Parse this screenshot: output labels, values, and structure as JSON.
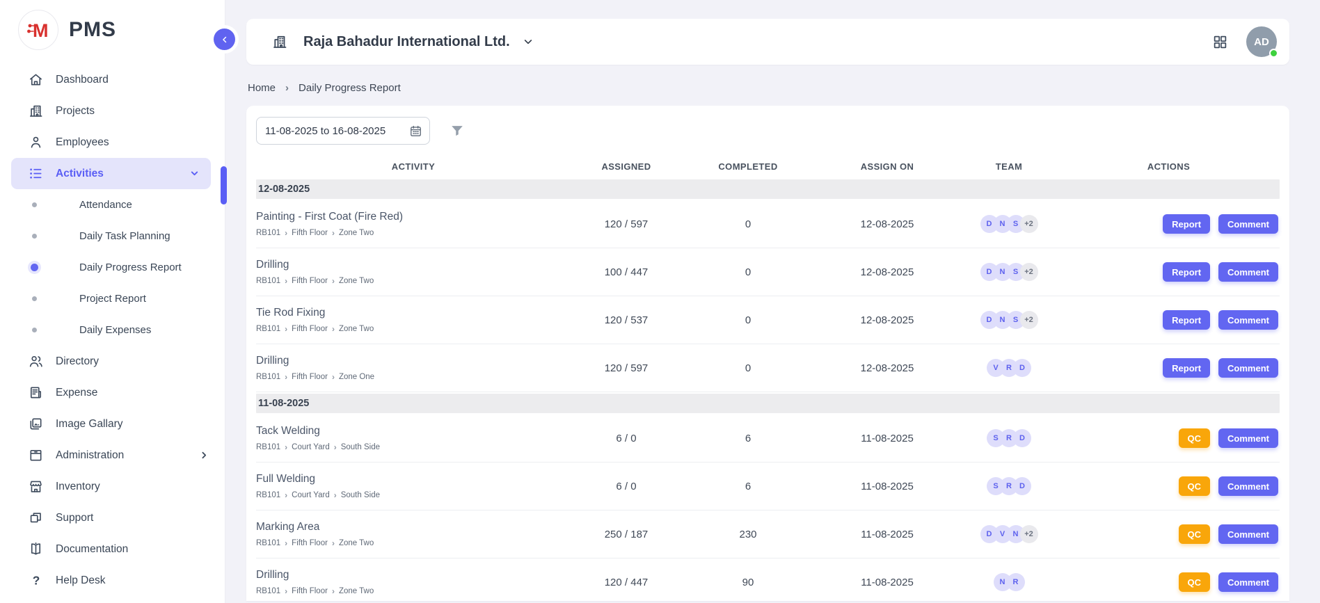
{
  "brand": {
    "name": "PMS",
    "logo_letter": "M"
  },
  "colors": {
    "accent": "#6266f1",
    "accent_light_bg": "#e4e4fb",
    "qc_orange": "#f9a60a",
    "avatar_bg": "#909dab",
    "online_green": "#3ed13e",
    "group_band": "#ececee",
    "page_bg": "#f2f2f8"
  },
  "header": {
    "company_name": "Raja Bahadur International Ltd.",
    "avatar_initials": "AD"
  },
  "breadcrumb": {
    "items": [
      "Home",
      "Daily Progress Report"
    ]
  },
  "filters": {
    "date_range_value": "11-08-2025 to 16-08-2025"
  },
  "sidebar": {
    "items": [
      {
        "label": "Dashboard",
        "icon": "home-icon"
      },
      {
        "label": "Projects",
        "icon": "building-icon"
      },
      {
        "label": "Employees",
        "icon": "person-icon"
      },
      {
        "label": "Activities",
        "icon": "list-icon",
        "active": true,
        "chevron": "down",
        "children": [
          {
            "label": "Attendance",
            "active": false
          },
          {
            "label": "Daily Task Planning",
            "active": false
          },
          {
            "label": "Daily Progress Report",
            "active": true
          },
          {
            "label": "Project Report",
            "active": false
          },
          {
            "label": "Daily Expenses",
            "active": false
          }
        ]
      },
      {
        "label": "Directory",
        "icon": "people-icon"
      },
      {
        "label": "Expense",
        "icon": "receipt-icon"
      },
      {
        "label": "Image Gallary",
        "icon": "gallery-icon"
      },
      {
        "label": "Administration",
        "icon": "archive-icon",
        "chevron": "right"
      },
      {
        "label": "Inventory",
        "icon": "store-icon"
      },
      {
        "label": "Support",
        "icon": "squares-icon"
      },
      {
        "label": "Documentation",
        "icon": "book-icon"
      },
      {
        "label": "Help Desk",
        "icon": "question-icon"
      }
    ]
  },
  "table": {
    "columns": [
      "ACTIVITY",
      "ASSIGNED",
      "COMPLETED",
      "ASSIGN ON",
      "TEAM",
      "ACTIONS"
    ],
    "groups": [
      {
        "date": "12-08-2025",
        "rows": [
          {
            "title": "Painting - First Coat (Fire Red)",
            "path": [
              "RB101",
              "Fifth Floor",
              "Zone Two"
            ],
            "assigned": "120 / 597",
            "completed": "0",
            "assign_on": "12-08-2025",
            "team": [
              "D",
              "N",
              "S"
            ],
            "team_extra": "+2",
            "actions": [
              "Report",
              "Comment"
            ]
          },
          {
            "title": "Drilling",
            "path": [
              "RB101",
              "Fifth Floor",
              "Zone Two"
            ],
            "assigned": "100 / 447",
            "completed": "0",
            "assign_on": "12-08-2025",
            "team": [
              "D",
              "N",
              "S"
            ],
            "team_extra": "+2",
            "actions": [
              "Report",
              "Comment"
            ]
          },
          {
            "title": "Tie Rod Fixing",
            "path": [
              "RB101",
              "Fifth Floor",
              "Zone Two"
            ],
            "assigned": "120 / 537",
            "completed": "0",
            "assign_on": "12-08-2025",
            "team": [
              "D",
              "N",
              "S"
            ],
            "team_extra": "+2",
            "actions": [
              "Report",
              "Comment"
            ]
          },
          {
            "title": "Drilling",
            "path": [
              "RB101",
              "Fifth Floor",
              "Zone One"
            ],
            "assigned": "120 / 597",
            "completed": "0",
            "assign_on": "12-08-2025",
            "team": [
              "V",
              "R",
              "D"
            ],
            "team_extra": null,
            "actions": [
              "Report",
              "Comment"
            ]
          }
        ]
      },
      {
        "date": "11-08-2025",
        "rows": [
          {
            "title": "Tack Welding",
            "path": [
              "RB101",
              "Court Yard",
              "South Side"
            ],
            "assigned": "6 / 0",
            "completed": "6",
            "assign_on": "11-08-2025",
            "team": [
              "S",
              "R",
              "D"
            ],
            "team_extra": null,
            "actions": [
              "QC",
              "Comment"
            ]
          },
          {
            "title": "Full Welding",
            "path": [
              "RB101",
              "Court Yard",
              "South Side"
            ],
            "assigned": "6 / 0",
            "completed": "6",
            "assign_on": "11-08-2025",
            "team": [
              "S",
              "R",
              "D"
            ],
            "team_extra": null,
            "actions": [
              "QC",
              "Comment"
            ]
          },
          {
            "title": "Marking Area",
            "path": [
              "RB101",
              "Fifth Floor",
              "Zone Two"
            ],
            "assigned": "250 / 187",
            "completed": "230",
            "assign_on": "11-08-2025",
            "team": [
              "D",
              "V",
              "N"
            ],
            "team_extra": "+2",
            "actions": [
              "QC",
              "Comment"
            ]
          },
          {
            "title": "Drilling",
            "path": [
              "RB101",
              "Fifth Floor",
              "Zone Two"
            ],
            "assigned": "120 / 447",
            "completed": "90",
            "assign_on": "11-08-2025",
            "team": [
              "N",
              "R"
            ],
            "team_extra": null,
            "actions": [
              "QC",
              "Comment"
            ]
          }
        ]
      }
    ]
  }
}
